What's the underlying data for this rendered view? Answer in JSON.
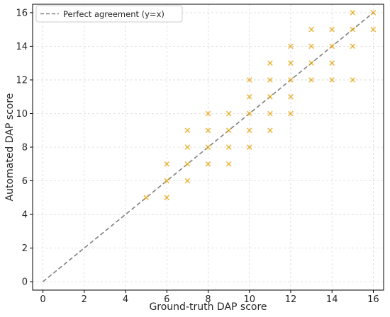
{
  "chart_data": {
    "type": "scatter",
    "title": "",
    "xlabel": "Ground-truth DAP score",
    "ylabel": "Automated DAP score",
    "xlim": [
      -0.5,
      16.5
    ],
    "ylim": [
      -0.5,
      16.5
    ],
    "xticks": [
      0,
      2,
      4,
      6,
      8,
      10,
      12,
      14,
      16
    ],
    "yticks": [
      0,
      2,
      4,
      6,
      8,
      10,
      12,
      14,
      16
    ],
    "grid": true,
    "legend_position": "top-left",
    "colors": {
      "points": "#e69f00",
      "reference_line": "#808080",
      "grid": "#d9d9d9",
      "axes": "#000000"
    },
    "reference_line": {
      "name": "Perfect agreement (y=x)",
      "style": "dashed",
      "points": [
        [
          0,
          0
        ],
        [
          16,
          16
        ]
      ]
    },
    "series": [
      {
        "marker": "x",
        "points": [
          [
            5,
            5
          ],
          [
            6,
            5
          ],
          [
            6,
            6
          ],
          [
            6,
            7
          ],
          [
            7,
            6
          ],
          [
            7,
            7
          ],
          [
            7,
            8
          ],
          [
            7,
            9
          ],
          [
            8,
            7
          ],
          [
            8,
            8
          ],
          [
            8,
            9
          ],
          [
            8,
            10
          ],
          [
            9,
            7
          ],
          [
            9,
            8
          ],
          [
            9,
            9
          ],
          [
            9,
            10
          ],
          [
            10,
            8
          ],
          [
            10,
            9
          ],
          [
            10,
            10
          ],
          [
            10,
            11
          ],
          [
            10,
            12
          ],
          [
            11,
            9
          ],
          [
            11,
            10
          ],
          [
            11,
            11
          ],
          [
            11,
            12
          ],
          [
            11,
            13
          ],
          [
            12,
            10
          ],
          [
            12,
            11
          ],
          [
            12,
            12
          ],
          [
            12,
            13
          ],
          [
            12,
            14
          ],
          [
            13,
            12
          ],
          [
            13,
            13
          ],
          [
            13,
            14
          ],
          [
            13,
            15
          ],
          [
            14,
            12
          ],
          [
            14,
            13
          ],
          [
            14,
            14
          ],
          [
            14,
            15
          ],
          [
            15,
            12
          ],
          [
            15,
            14
          ],
          [
            15,
            15
          ],
          [
            15,
            16
          ],
          [
            16,
            15
          ],
          [
            16,
            16
          ]
        ]
      }
    ]
  }
}
